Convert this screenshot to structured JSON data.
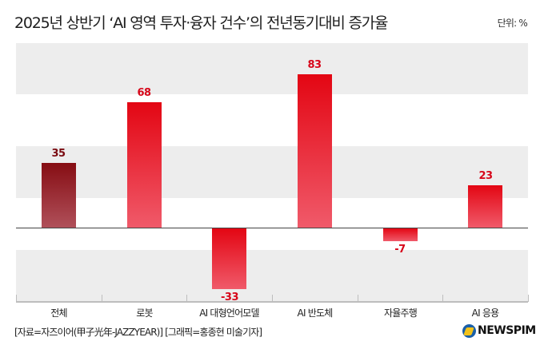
{
  "header": {
    "title": "2025년 상반기 ‘AI 영역 투자·융자 건수’의 전년동기대비 증가율",
    "unit": "단위: %"
  },
  "footer": {
    "source": "[자료=자즈이어(甲子光年-JAZZYEAR)] [그래픽=홍종현 미술기자]",
    "logo": "NEWSPIM"
  },
  "colors": {
    "bar_primary": "#e30613",
    "bar_total": "#860d13",
    "band": "#ededed",
    "label_primary": "#d7071a",
    "label_total": "#7a0a10"
  },
  "chart_data": {
    "type": "bar",
    "title": "2025년 상반기 ‘AI 영역 투자·융자 건수’의 전년동기대비 증가율",
    "unit": "%",
    "categories": [
      "전체",
      "로봇",
      "AI 대형언어모델",
      "AI 반도체",
      "자율주행",
      "AI 응용"
    ],
    "values": [
      35,
      68,
      -33,
      83,
      -7,
      23
    ],
    "value_labels": [
      "35",
      "68",
      "-33",
      "83",
      "-7",
      "23"
    ],
    "xlabel": "",
    "ylabel": "",
    "ylim": [
      -40,
      100
    ],
    "grid": "alternating horizontal bands",
    "legend": "none",
    "highlight": {
      "category": "전체",
      "color": "#860d13"
    }
  }
}
